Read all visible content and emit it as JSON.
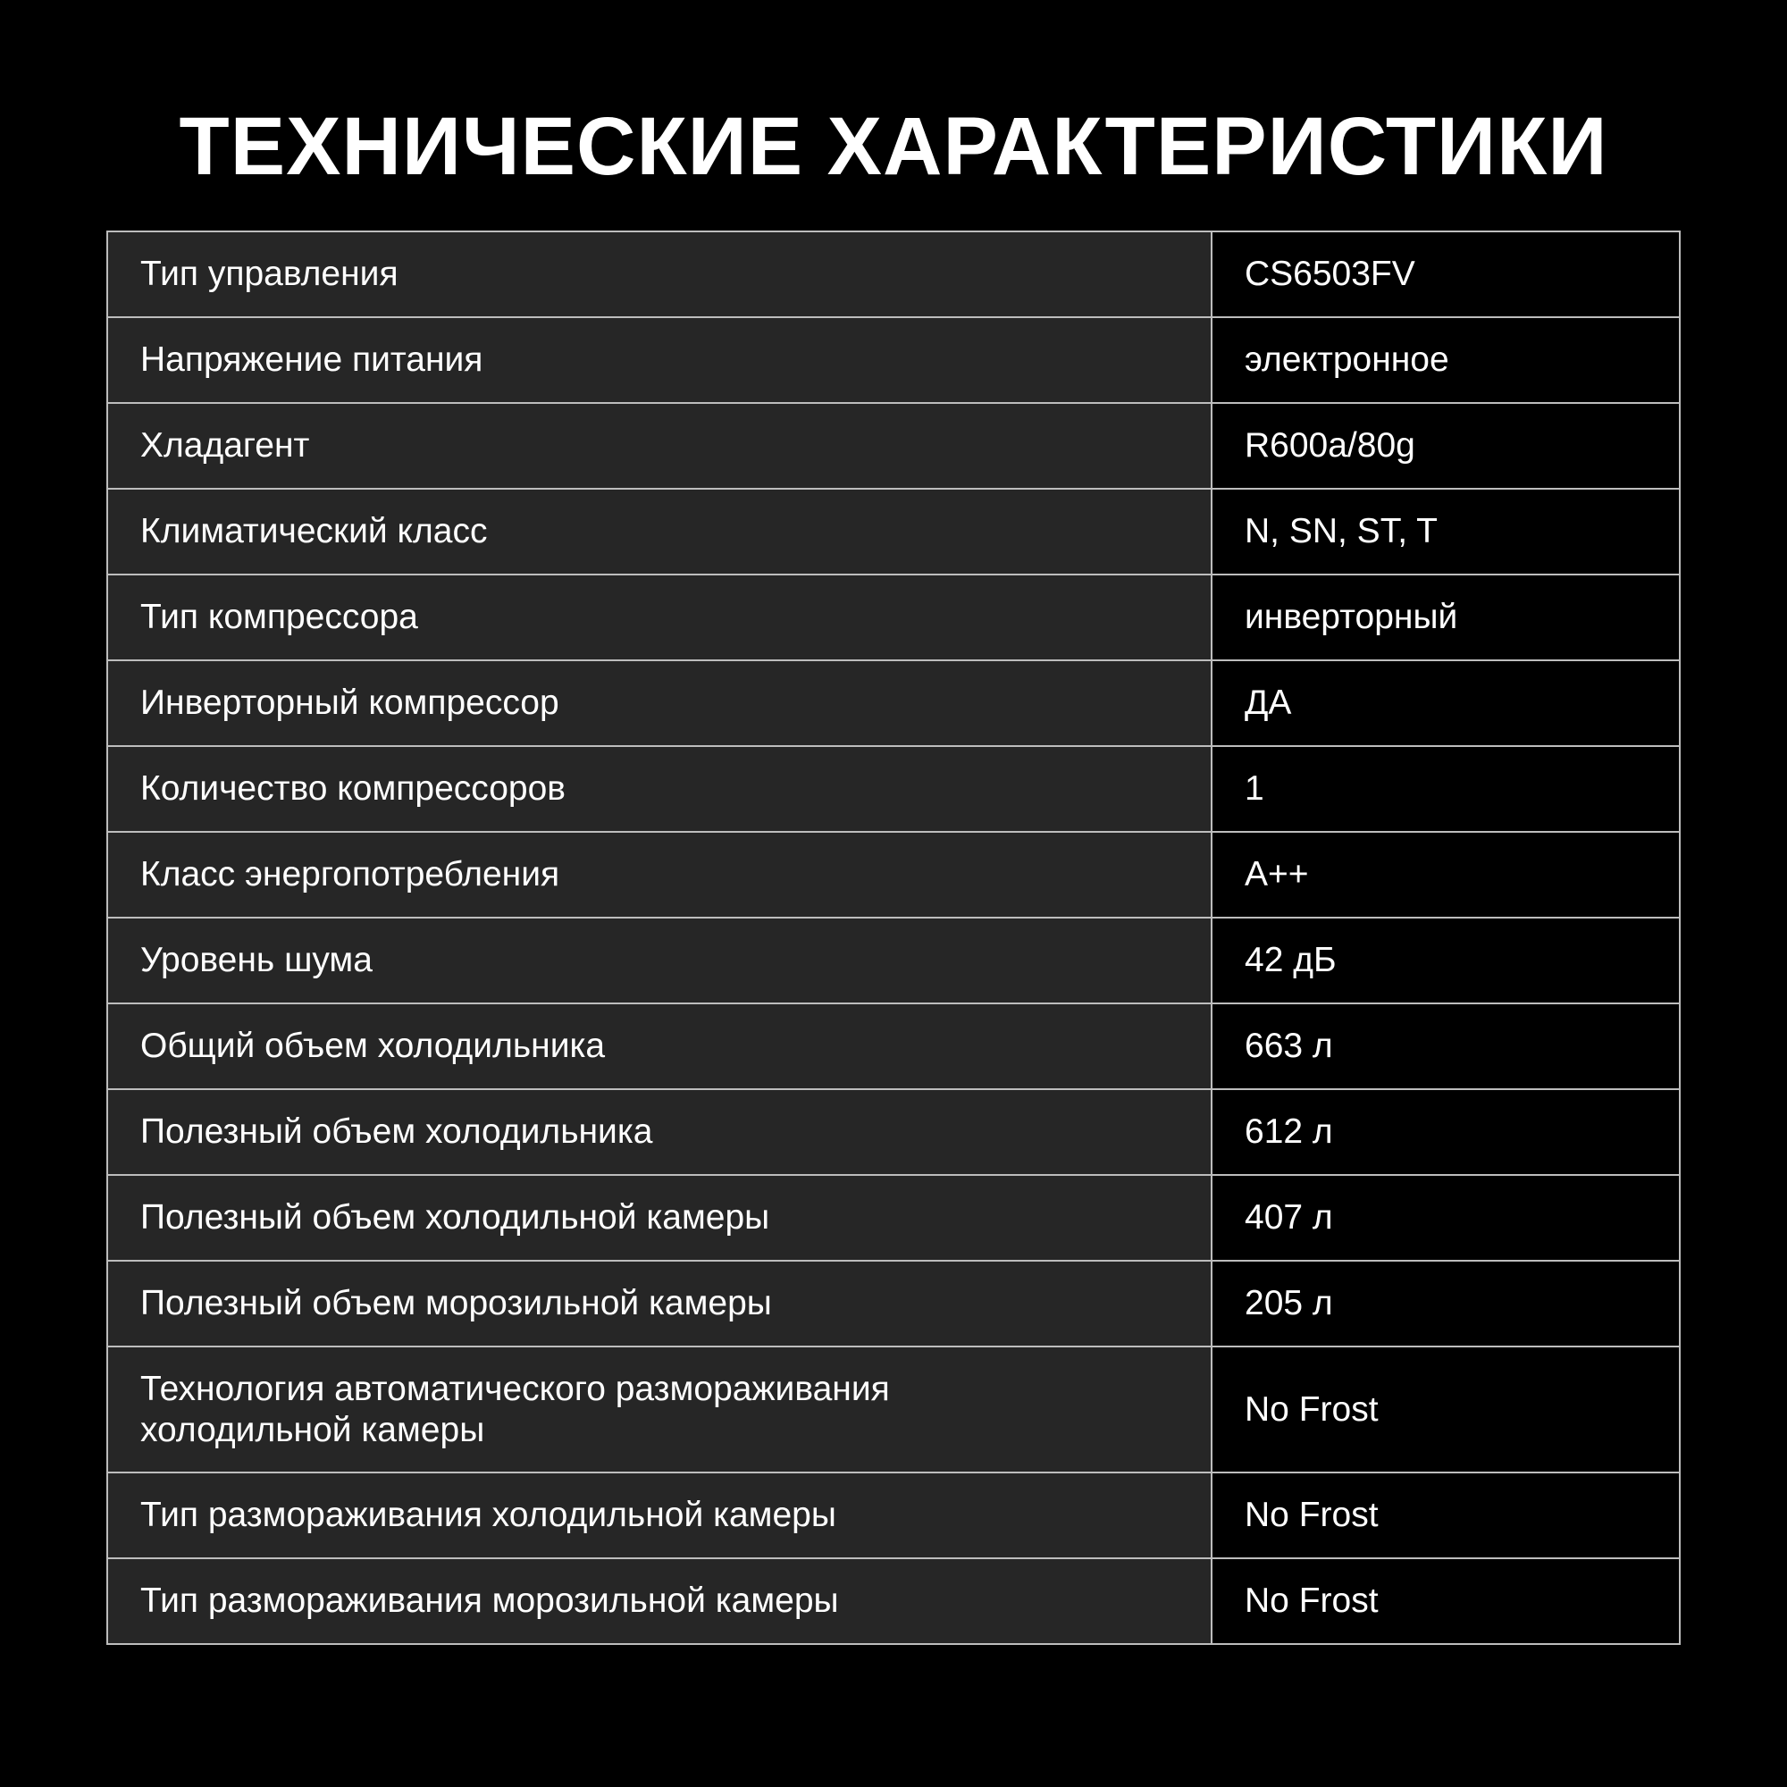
{
  "title": "ТЕХНИЧЕСКИЕ ХАРАКТЕРИСТИКИ",
  "rows": [
    {
      "label": "Тип управления",
      "value": "CS6503FV"
    },
    {
      "label": "Напряжение питания",
      "value": "электронное"
    },
    {
      "label": "Хладагент",
      "value": "R600a/80g"
    },
    {
      "label": "Климатический класс",
      "value": "N, SN, ST, T"
    },
    {
      "label": "Тип компрессора",
      "value": "инверторный"
    },
    {
      "label": "Инверторный компрессор",
      "value": "ДА"
    },
    {
      "label": "Количество компрессоров",
      "value": "1"
    },
    {
      "label": "Класс энергопотребления",
      "value": "A++"
    },
    {
      "label": "Уровень шума",
      "value": "42 дБ"
    },
    {
      "label": "Общий объем холодильника",
      "value": "663 л"
    },
    {
      "label": "Полезный объем холодильника",
      "value": "612 л"
    },
    {
      "label": "Полезный объем холодильной камеры",
      "value": "407 л"
    },
    {
      "label": "Полезный объем морозильной камеры",
      "value": "205 л"
    },
    {
      "label": "Технология автоматического размораживания холодильной камеры",
      "value": "No Frost"
    },
    {
      "label": "Тип размораживания холодильной камеры",
      "value": "No Frost"
    },
    {
      "label": "Тип размораживания морозильной камеры",
      "value": "No Frost"
    }
  ]
}
